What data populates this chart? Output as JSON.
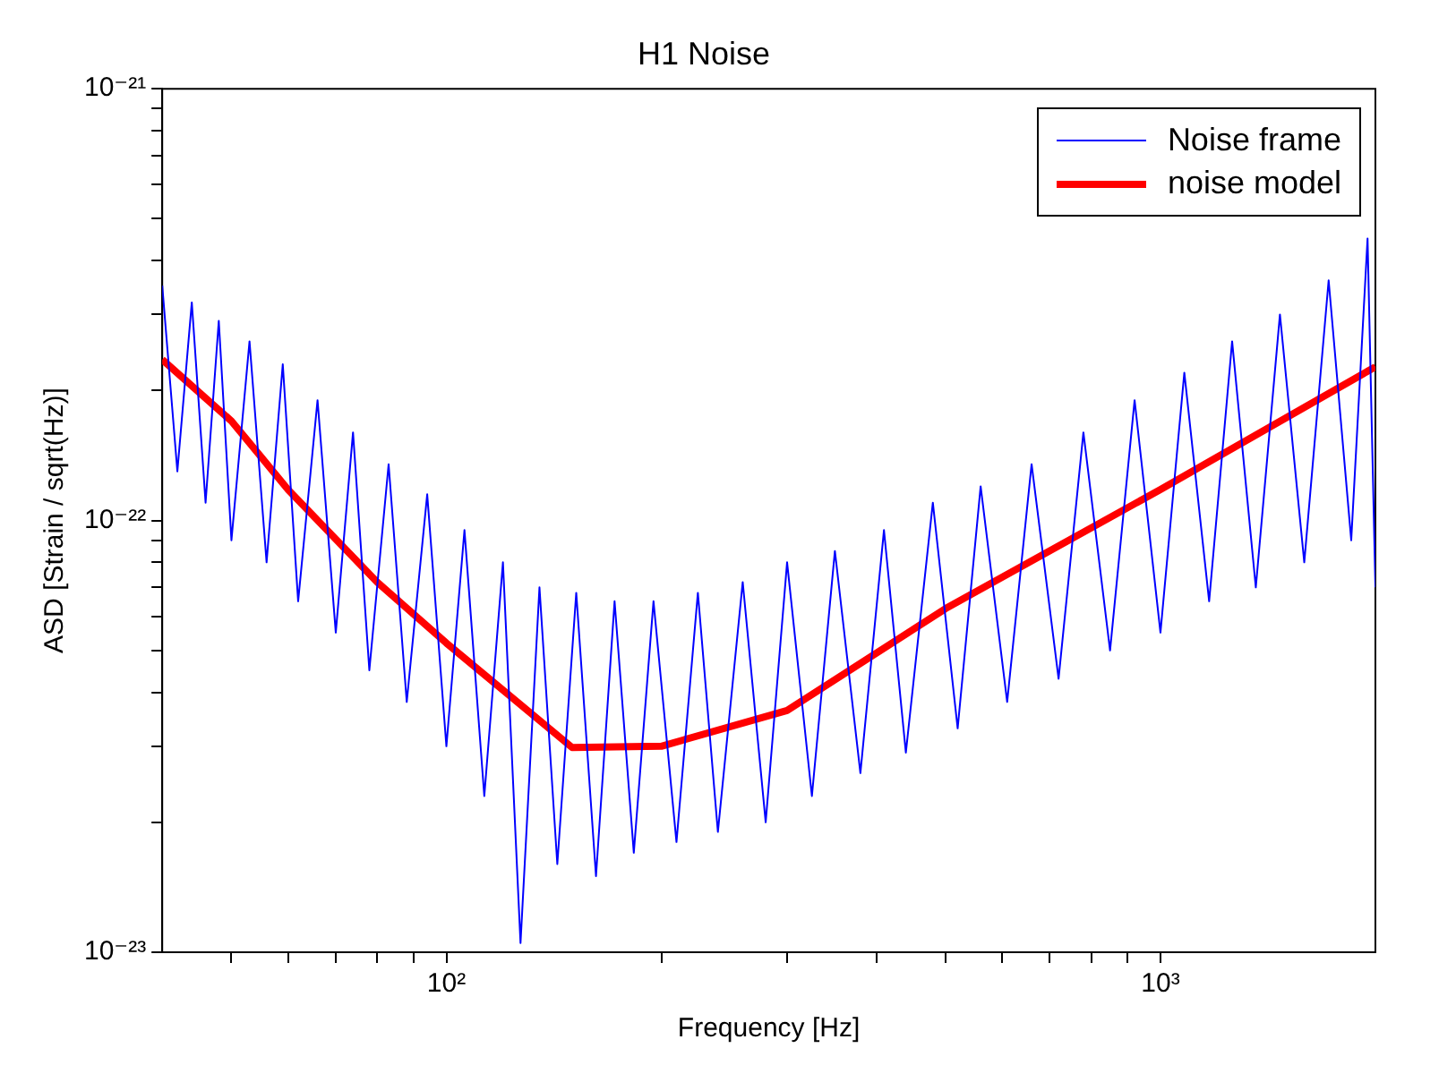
{
  "chart_data": {
    "type": "line",
    "title": "H1 Noise",
    "xlabel": "Frequency [Hz]",
    "ylabel": "ASD [Strain / sqrt(Hz)]",
    "log": "xy",
    "grid": false,
    "legend": "top right",
    "marker": "none",
    "line_style": "solid",
    "xlim": [
      40,
      2000
    ],
    "ylim": [
      1e-23,
      1e-21
    ],
    "xticks": [
      {
        "value": 50,
        "label": null
      },
      {
        "value": 60,
        "label": null
      },
      {
        "value": 70,
        "label": null
      },
      {
        "value": 80,
        "label": null
      },
      {
        "value": 90,
        "label": null
      },
      {
        "value": 100,
        "label": "10²"
      },
      {
        "value": 200,
        "label": null
      },
      {
        "value": 300,
        "label": null
      },
      {
        "value": 400,
        "label": null
      },
      {
        "value": 500,
        "label": null
      },
      {
        "value": 600,
        "label": null
      },
      {
        "value": 700,
        "label": null
      },
      {
        "value": 800,
        "label": null
      },
      {
        "value": 900,
        "label": null
      },
      {
        "value": 1000,
        "label": "10³"
      }
    ],
    "yticks": [
      {
        "value": 1e-23,
        "label": "10⁻²³"
      },
      {
        "value": 2e-23,
        "label": null
      },
      {
        "value": 3e-23,
        "label": null
      },
      {
        "value": 4e-23,
        "label": null
      },
      {
        "value": 5e-23,
        "label": null
      },
      {
        "value": 6e-23,
        "label": null
      },
      {
        "value": 7e-23,
        "label": null
      },
      {
        "value": 8e-23,
        "label": null
      },
      {
        "value": 9e-23,
        "label": null
      },
      {
        "value": 1e-22,
        "label": "10⁻²²"
      },
      {
        "value": 2e-22,
        "label": null
      },
      {
        "value": 3e-22,
        "label": null
      },
      {
        "value": 4e-22,
        "label": null
      },
      {
        "value": 5e-22,
        "label": null
      },
      {
        "value": 6e-22,
        "label": null
      },
      {
        "value": 7e-22,
        "label": null
      },
      {
        "value": 8e-22,
        "label": null
      },
      {
        "value": 9e-22,
        "label": null
      },
      {
        "value": 1e-21,
        "label": "10⁻²¹"
      }
    ],
    "series": [
      {
        "name": "Noise frame",
        "color": "#0000ff",
        "x": [
          40,
          42,
          44,
          46,
          48,
          50,
          53,
          56,
          59,
          62,
          66,
          70,
          74,
          78,
          83,
          88,
          94,
          100,
          106,
          113,
          120,
          127,
          135,
          143,
          152,
          162,
          172,
          183,
          195,
          210,
          225,
          240,
          260,
          280,
          300,
          325,
          350,
          380,
          410,
          440,
          480,
          520,
          560,
          610,
          660,
          720,
          780,
          850,
          920,
          1000,
          1080,
          1170,
          1260,
          1360,
          1470,
          1590,
          1720,
          1850,
          1950,
          2000
        ],
        "values": [
          3.5e-22,
          1.3e-22,
          3.2e-22,
          1.1e-22,
          2.9e-22,
          9e-23,
          2.6e-22,
          8e-23,
          2.3e-22,
          6.5e-23,
          1.9e-22,
          5.5e-23,
          1.6e-22,
          4.5e-23,
          1.35e-22,
          3.8e-23,
          1.15e-22,
          3e-23,
          9.5e-23,
          2.3e-23,
          8e-23,
          1.05e-23,
          7e-23,
          1.6e-23,
          6.8e-23,
          1.5e-23,
          6.5e-23,
          1.7e-23,
          6.5e-23,
          1.8e-23,
          6.8e-23,
          1.9e-23,
          7.2e-23,
          2e-23,
          8e-23,
          2.3e-23,
          8.5e-23,
          2.6e-23,
          9.5e-23,
          2.9e-23,
          1.1e-22,
          3.3e-23,
          1.2e-22,
          3.8e-23,
          1.35e-22,
          4.3e-23,
          1.6e-22,
          5e-23,
          1.9e-22,
          5.5e-23,
          2.2e-22,
          6.5e-23,
          2.6e-22,
          7e-23,
          3e-22,
          8e-23,
          3.6e-22,
          9e-23,
          4.5e-22,
          7e-23
        ]
      },
      {
        "name": "noise model",
        "color": "#ff0000",
        "x": [
          40,
          50,
          60,
          80,
          100,
          150,
          200,
          300,
          500,
          1000,
          2000
        ],
        "values": [
          2.36e-22,
          1.7e-22,
          1.18e-22,
          7.2e-23,
          5.2e-23,
          2.98e-23,
          3e-23,
          3.63e-23,
          6.25e-23,
          1.18e-22,
          2.27e-22
        ]
      }
    ]
  }
}
